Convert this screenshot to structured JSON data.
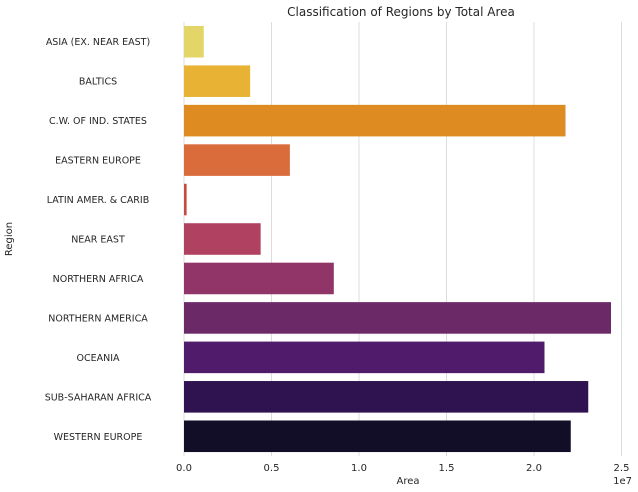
{
  "chart_data": {
    "type": "bar",
    "orientation": "horizontal",
    "title": "Classification of Regions by Total Area",
    "xlabel": "Area",
    "ylabel": "Region",
    "x_offset_label": "1e7",
    "xlim": [
      0,
      25600000
    ],
    "xticks": [
      {
        "value": 0,
        "label": "0.0"
      },
      {
        "value": 5000000,
        "label": "0.5"
      },
      {
        "value": 10000000,
        "label": "1.0"
      },
      {
        "value": 15000000,
        "label": "1.5"
      },
      {
        "value": 20000000,
        "label": "2.0"
      },
      {
        "value": 25000000,
        "label": "2.5"
      }
    ],
    "grid": true,
    "categories": [
      "ASIA (EX. NEAR EAST)",
      "BALTICS",
      "C.W. OF IND. STATES",
      "EASTERN EUROPE",
      "LATIN AMER. & CARIB",
      "NEAR EAST",
      "NORTHERN AFRICA",
      "NORTHERN AMERICA",
      "OCEANIA",
      "SUB-SAHARAN AFRICA",
      "WESTERN EUROPE"
    ],
    "values": [
      1130000,
      3780000,
      21800000,
      6050000,
      150000,
      4380000,
      8560000,
      24400000,
      20600000,
      23100000,
      22100000
    ],
    "colors": [
      "#e3d567",
      "#e8b334",
      "#de8b22",
      "#d96c3a",
      "#c34d43",
      "#b04160",
      "#913468",
      "#6c2968",
      "#501b6b",
      "#2f1250",
      "#120e27"
    ]
  }
}
